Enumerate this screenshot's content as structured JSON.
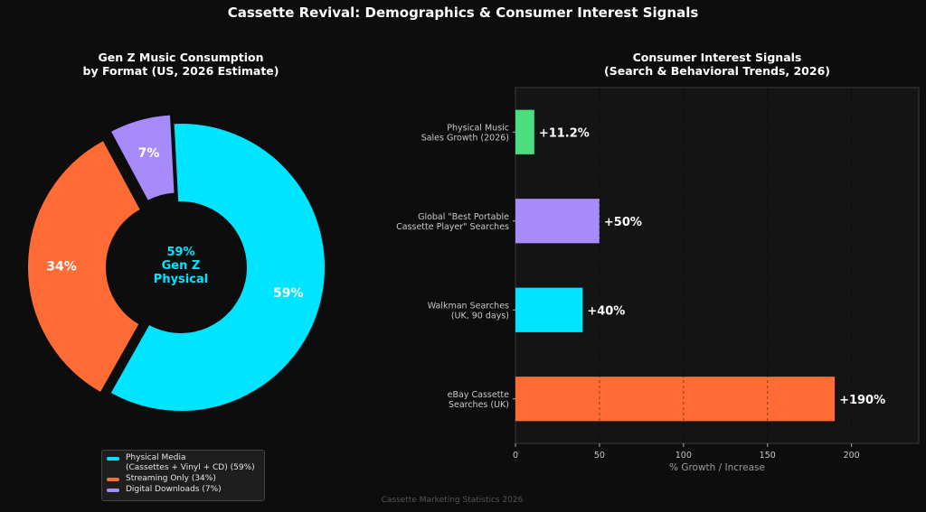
{
  "title": "Cassette Revival: Demographics & Consumer Interest Signals",
  "footer": "Cassette Marketing Statistics 2026",
  "colors": {
    "background": "#0d0d0d",
    "panel": "#141414",
    "cyan": "#00e5ff",
    "orange": "#ff6b35",
    "purple": "#a78bfa",
    "green": "#4ade80"
  },
  "chart_data": [
    {
      "type": "pie",
      "variant": "donut",
      "title": "Gen Z Music Consumption\nby Format (US, 2026 Estimate)",
      "center_label": [
        "59%",
        "Gen Z",
        "Physical"
      ],
      "slices": [
        {
          "label": "Physical Media\n(Cassettes + Vinyl + CD) (59%)",
          "value": 59,
          "display": "59%",
          "color": "#00e5ff",
          "exploded": false
        },
        {
          "label": "Streaming Only (34%)",
          "value": 34,
          "display": "34%",
          "color": "#ff6b35",
          "exploded": true
        },
        {
          "label": "Digital Downloads (7%)",
          "value": 7,
          "display": "7%",
          "color": "#a78bfa",
          "exploded": true
        }
      ],
      "legend_position": "bottom-center"
    },
    {
      "type": "bar",
      "orientation": "horizontal",
      "title": "Consumer Interest Signals\n(Search & Behavioral Trends, 2026)",
      "xlabel": "% Growth / Increase",
      "xlim": [
        0,
        240
      ],
      "xticks": [
        0,
        50,
        100,
        150,
        200
      ],
      "grid": "x-dashed",
      "categories": [
        "Physical Music\nSales Growth (2026)",
        "Global \"Best Portable\nCassette Player\" Searches",
        "Walkman Searches\n(UK, 90 days)",
        "eBay Cassette\nSearches (UK)"
      ],
      "values": [
        11.2,
        50,
        40,
        190
      ],
      "value_labels": [
        "+11.2%",
        "+50%",
        "+40%",
        "+190%"
      ],
      "colors": [
        "#4ade80",
        "#a78bfa",
        "#00e5ff",
        "#ff6b35"
      ]
    }
  ]
}
